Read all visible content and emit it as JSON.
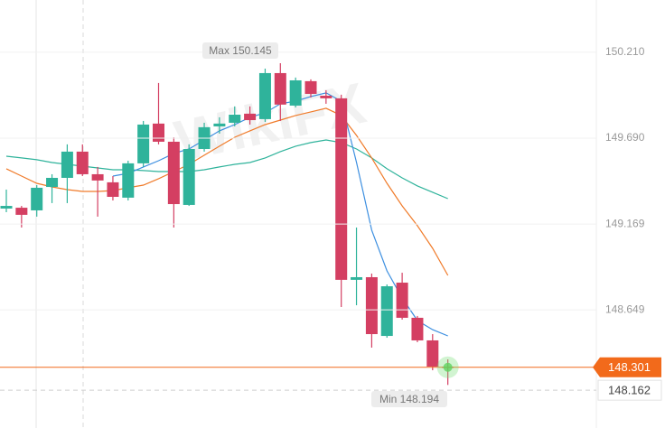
{
  "chart_data": {
    "type": "candlestick",
    "open": [
      149.263,
      149.268,
      149.252,
      149.394,
      149.449,
      149.608,
      149.471,
      149.422,
      149.329,
      149.537,
      149.778,
      149.668,
      149.285,
      149.624,
      149.761,
      149.783,
      149.838,
      149.805,
      150.084,
      149.887,
      150.035,
      149.947,
      149.931,
      148.831,
      148.847,
      148.491,
      148.814,
      148.601,
      148.464,
      148.305
    ],
    "high": [
      149.378,
      149.279,
      149.405,
      149.471,
      149.652,
      149.652,
      149.515,
      149.46,
      149.553,
      149.794,
      150.024,
      149.695,
      149.652,
      149.783,
      149.816,
      149.882,
      149.882,
      150.111,
      150.144,
      150.057,
      150.046,
      149.98,
      149.953,
      149.148,
      148.869,
      148.803,
      148.874,
      148.612,
      148.502,
      148.349
    ],
    "low": [
      149.241,
      149.148,
      149.214,
      149.296,
      149.296,
      149.46,
      149.214,
      149.312,
      149.312,
      149.515,
      149.652,
      149.148,
      149.279,
      149.608,
      149.717,
      149.761,
      149.772,
      149.788,
      149.794,
      149.876,
      149.936,
      149.898,
      148.666,
      148.677,
      148.42,
      148.48,
      148.59,
      148.453,
      148.283,
      148.194
    ],
    "close": [
      149.279,
      149.225,
      149.389,
      149.449,
      149.608,
      149.471,
      149.433,
      149.334,
      149.537,
      149.772,
      149.668,
      149.29,
      149.624,
      149.756,
      149.778,
      149.832,
      149.799,
      150.084,
      149.893,
      150.04,
      149.958,
      149.931,
      148.831,
      148.847,
      148.502,
      148.792,
      148.601,
      148.464,
      148.305,
      148.301
    ],
    "up_color": "#2fb39b",
    "down_color": "#d43f62",
    "moving_averages": [
      {
        "color": "#2fb39b",
        "values": [
          149.58,
          149.57,
          149.559,
          149.542,
          149.531,
          149.52,
          149.509,
          149.498,
          149.498,
          149.493,
          149.487,
          149.487,
          149.487,
          149.498,
          149.515,
          149.531,
          149.542,
          149.57,
          149.608,
          149.641,
          149.663,
          149.679,
          149.663,
          149.624,
          149.57,
          149.504,
          149.449,
          149.4,
          149.362,
          149.323
        ]
      },
      {
        "color": "#f07b2a",
        "values": [
          149.504,
          149.46,
          149.416,
          149.394,
          149.378,
          149.367,
          149.367,
          149.372,
          149.389,
          149.405,
          149.444,
          149.487,
          149.531,
          149.586,
          149.641,
          149.695,
          149.734,
          149.772,
          149.799,
          149.827,
          149.849,
          149.871,
          149.827,
          149.706,
          149.57,
          149.416,
          149.279,
          149.159,
          149.022,
          148.858
        ]
      },
      {
        "color": "#3d8fe0",
        "values": [
          null,
          null,
          null,
          null,
          null,
          null,
          null,
          149.46,
          149.476,
          149.515,
          149.553,
          149.597,
          149.624,
          149.679,
          149.734,
          149.772,
          149.816,
          149.843,
          149.898,
          149.914,
          149.942,
          149.964,
          149.914,
          149.542,
          149.132,
          148.885,
          148.721,
          148.584,
          148.529,
          148.491
        ]
      }
    ],
    "ylim": [
      147.933,
      150.527
    ],
    "yticks": [
      {
        "value": 150.21,
        "label": "150.210"
      },
      {
        "value": 149.69,
        "label": "149.690"
      },
      149.169,
      148.649
    ],
    "grid": true,
    "max_label": "Max 150.145",
    "min_label": "Min 148.194",
    "last_price": 148.301,
    "last_price_color": "#f26a1b",
    "cursor_price": 148.162,
    "watermark": "WikiFX"
  }
}
